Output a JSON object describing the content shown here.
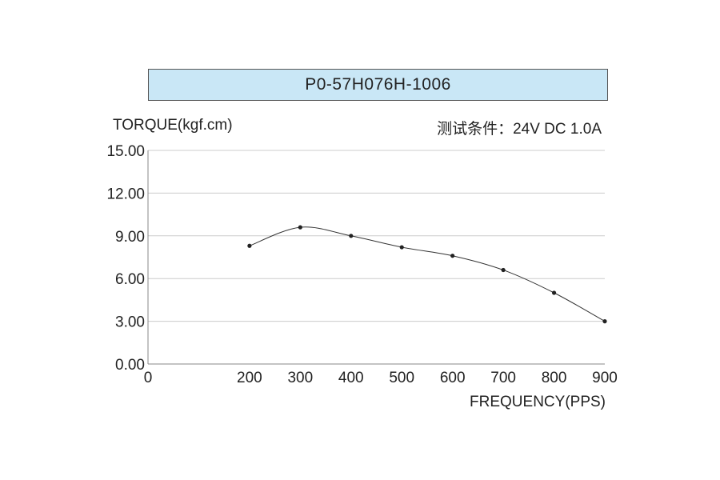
{
  "chart_data": {
    "type": "line",
    "title": "P0-57H076H-1006",
    "ylabel": "TORQUE(kgf.cm)",
    "xlabel": "FREQUENCY(PPS)",
    "condition": "测试条件：24V DC  1.0A",
    "xlim": [
      0,
      900
    ],
    "ylim": [
      0,
      15
    ],
    "x_ticks": [
      "0",
      "200",
      "300",
      "400",
      "500",
      "600",
      "700",
      "800",
      "900"
    ],
    "x_tick_values": [
      0,
      200,
      300,
      400,
      500,
      600,
      700,
      800,
      900
    ],
    "y_ticks": [
      "0.00",
      "3.00",
      "6.00",
      "9.00",
      "12.00",
      "15.00"
    ],
    "y_tick_values": [
      0,
      3,
      6,
      9,
      12,
      15
    ],
    "grid": true,
    "series": [
      {
        "x": [
          200,
          300,
          400,
          500,
          600,
          700,
          800,
          900
        ],
        "values": [
          8.3,
          9.6,
          9.0,
          8.2,
          7.6,
          6.6,
          5.0,
          3.0
        ]
      }
    ],
    "colors": {
      "title_bg": "#c9e7f6",
      "grid": "#cccccc",
      "line": "#333333",
      "point": "#222222"
    }
  }
}
